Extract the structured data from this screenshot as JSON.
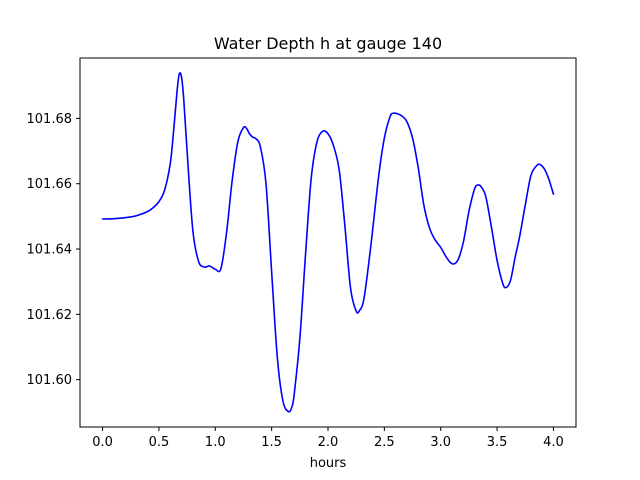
{
  "chart_data": {
    "type": "line",
    "title": "Water Depth h at gauge 140",
    "xlabel": "hours",
    "ylabel": "",
    "xlim": [
      -0.2,
      4.2
    ],
    "ylim": [
      101.5855,
      101.6985
    ],
    "xticks": [
      0.0,
      0.5,
      1.0,
      1.5,
      2.0,
      2.5,
      3.0,
      3.5,
      4.0
    ],
    "xtick_labels": [
      "0.0",
      "0.5",
      "1.0",
      "1.5",
      "2.0",
      "2.5",
      "3.0",
      "3.5",
      "4.0"
    ],
    "yticks": [
      101.6,
      101.62,
      101.64,
      101.66,
      101.68
    ],
    "ytick_labels": [
      "101.60",
      "101.62",
      "101.64",
      "101.66",
      "101.68"
    ],
    "grid": false,
    "line_color": "#0000ff",
    "series": [
      {
        "x": [
          0.0,
          0.1,
          0.2,
          0.3,
          0.4,
          0.45,
          0.5,
          0.55,
          0.6,
          0.63,
          0.66,
          0.68,
          0.7,
          0.72,
          0.75,
          0.8,
          0.85,
          0.9,
          0.95,
          1.0,
          1.05,
          1.1,
          1.15,
          1.2,
          1.25,
          1.28,
          1.3,
          1.33,
          1.36,
          1.4,
          1.45,
          1.5,
          1.55,
          1.6,
          1.65,
          1.68,
          1.7,
          1.75,
          1.8,
          1.85,
          1.9,
          1.95,
          2.0,
          2.05,
          2.1,
          2.15,
          2.2,
          2.25,
          2.28,
          2.32,
          2.38,
          2.45,
          2.5,
          2.55,
          2.58,
          2.62,
          2.66,
          2.7,
          2.75,
          2.8,
          2.85,
          2.9,
          2.95,
          3.0,
          3.05,
          3.1,
          3.15,
          3.2,
          3.25,
          3.3,
          3.33,
          3.36,
          3.4,
          3.45,
          3.5,
          3.55,
          3.58,
          3.62,
          3.66,
          3.7,
          3.75,
          3.8,
          3.85,
          3.88,
          3.92,
          3.96,
          4.0
        ],
        "y": [
          101.6492,
          101.6493,
          101.6496,
          101.6502,
          101.6515,
          101.6527,
          101.6545,
          101.658,
          101.666,
          101.676,
          101.688,
          101.6935,
          101.6928,
          101.686,
          101.67,
          101.646,
          101.6364,
          101.6345,
          101.6348,
          101.6338,
          101.634,
          101.645,
          101.661,
          101.6728,
          101.6772,
          101.6768,
          101.6755,
          101.6743,
          101.6738,
          101.6713,
          101.66,
          101.633,
          101.607,
          101.5935,
          101.5902,
          101.5917,
          101.5955,
          101.6125,
          101.638,
          101.6613,
          101.6725,
          101.676,
          101.6753,
          101.6715,
          101.664,
          101.647,
          101.628,
          101.621,
          101.6212,
          101.625,
          101.641,
          101.6625,
          101.674,
          101.6805,
          101.6816,
          101.6814,
          101.6806,
          101.679,
          101.674,
          101.665,
          101.6535,
          101.6465,
          101.6428,
          101.6405,
          101.6375,
          101.6355,
          101.6365,
          101.642,
          101.6515,
          101.6584,
          101.6596,
          101.659,
          101.656,
          101.6467,
          101.6365,
          101.6295,
          101.6282,
          101.6305,
          101.6375,
          101.6438,
          101.6535,
          101.6625,
          101.6655,
          101.6659,
          101.6645,
          101.6613,
          101.6568
        ]
      }
    ]
  }
}
